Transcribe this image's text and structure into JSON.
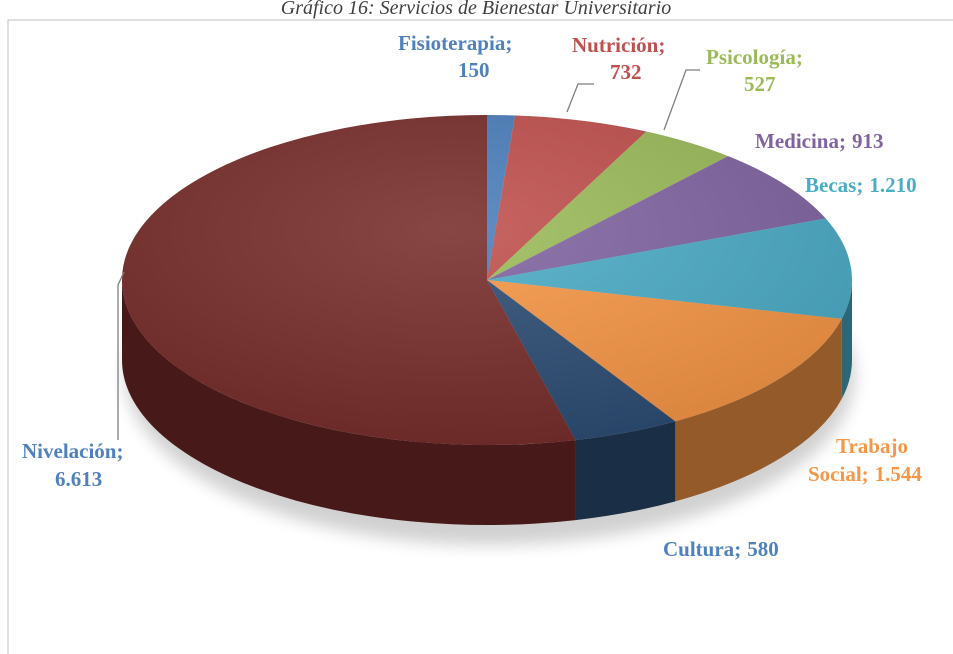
{
  "chart_data": {
    "type": "pie",
    "title": "Gráfico 16: Servicios de Bienestar Universitario",
    "categories": [
      "Fisioterapia",
      "Nutrición",
      "Psicología",
      "Medicina",
      "Becas",
      "Trabajo Social",
      "Cultura",
      "Nivelación"
    ],
    "values": [
      150,
      732,
      527,
      913,
      1210,
      1544,
      580,
      6613
    ],
    "value_labels": [
      "150",
      "732",
      "527",
      "913",
      "1.210",
      "1.544",
      "580",
      "6.613"
    ],
    "label_separator": ";",
    "colors": [
      "#4a7ebb",
      "#c0504d",
      "#9bbb59",
      "#8064a2",
      "#4bacc6",
      "#f79646",
      "#2c4d75",
      "#772c2a"
    ],
    "label_colors": [
      "#4f81bd",
      "#c0504d",
      "#9bbb59",
      "#8064a2",
      "#4bacc6",
      "#f79646",
      "#4f81bd",
      "#4f81bd"
    ]
  }
}
